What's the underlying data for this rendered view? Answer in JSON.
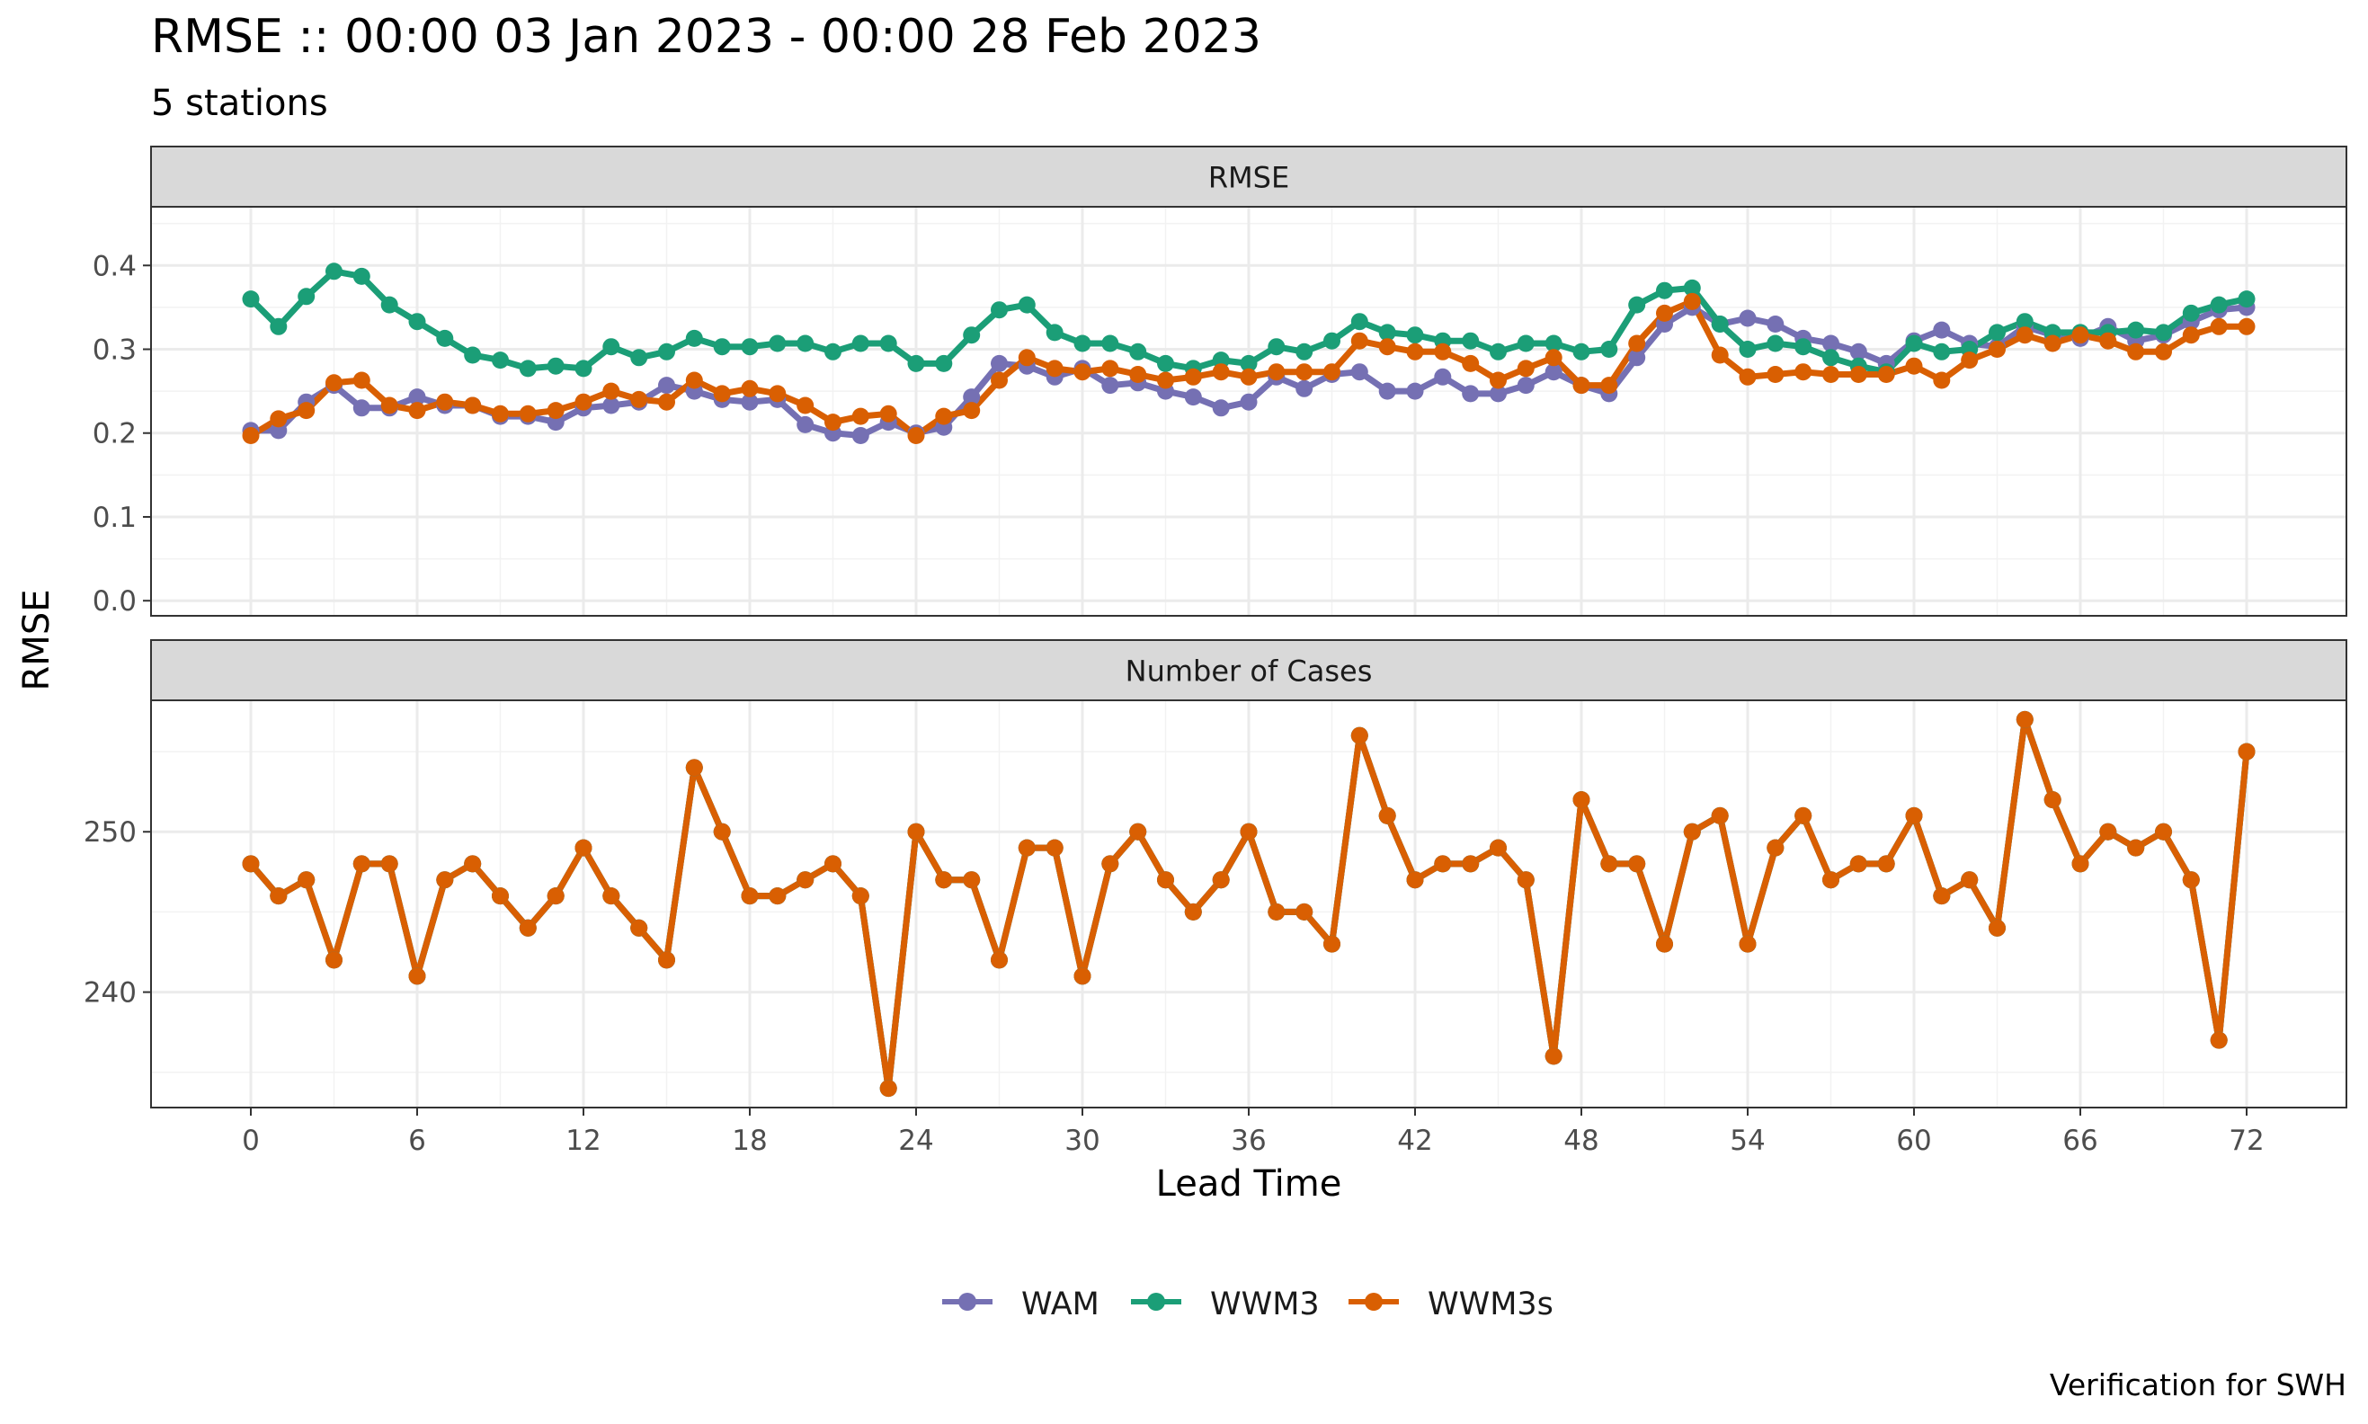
{
  "title": "RMSE :: 00:00 03 Jan 2023 - 00:00 28 Feb 2023",
  "subtitle": "5 stations",
  "caption": "Verification for SWH",
  "ylabel": "RMSE",
  "xlabel": "Lead Time",
  "legend_position": "bottom",
  "colors": {
    "WAM": "#7570b3",
    "WWM3": "#1b9e77",
    "WWM3s": "#d95f02"
  },
  "chart_data": [
    {
      "type": "line",
      "panel_title": "RMSE",
      "x": [
        0,
        1,
        2,
        3,
        4,
        5,
        6,
        7,
        8,
        9,
        10,
        11,
        12,
        13,
        14,
        15,
        16,
        17,
        18,
        19,
        20,
        21,
        22,
        23,
        24,
        25,
        26,
        27,
        28,
        29,
        30,
        31,
        32,
        33,
        34,
        35,
        36,
        37,
        38,
        39,
        40,
        41,
        42,
        43,
        44,
        45,
        46,
        47,
        48,
        49,
        50,
        51,
        52,
        53,
        54,
        55,
        56,
        57,
        58,
        59,
        60,
        61,
        62,
        63,
        64,
        65,
        66,
        67,
        68,
        69,
        70,
        71,
        72
      ],
      "xlim": [
        -3.6,
        75.6
      ],
      "xticks": [
        0,
        6,
        12,
        18,
        24,
        30,
        36,
        42,
        48,
        54,
        60,
        66,
        72
      ],
      "ylim": [
        -0.018,
        0.47
      ],
      "yticks": [
        0.0,
        0.1,
        0.2,
        0.3,
        0.4
      ],
      "ytick_labels": [
        "0.0",
        "0.1",
        "0.2",
        "0.3",
        "0.4"
      ],
      "grid": true,
      "series": [
        {
          "name": "WAM",
          "values": [
            0.203,
            0.203,
            0.237,
            0.257,
            0.23,
            0.23,
            0.243,
            0.233,
            0.233,
            0.22,
            0.22,
            0.213,
            0.23,
            0.233,
            0.237,
            0.257,
            0.25,
            0.24,
            0.237,
            0.24,
            0.21,
            0.2,
            0.197,
            0.213,
            0.2,
            0.207,
            0.243,
            0.283,
            0.28,
            0.267,
            0.277,
            0.257,
            0.26,
            0.25,
            0.243,
            0.23,
            0.237,
            0.267,
            0.253,
            0.27,
            0.273,
            0.25,
            0.25,
            0.267,
            0.247,
            0.247,
            0.257,
            0.273,
            0.257,
            0.247,
            0.29,
            0.33,
            0.35,
            0.33,
            0.337,
            0.33,
            0.313,
            0.307,
            0.297,
            0.283,
            0.31,
            0.323,
            0.307,
            0.303,
            0.327,
            0.317,
            0.313,
            0.327,
            0.31,
            0.317,
            0.333,
            0.347,
            0.35
          ]
        },
        {
          "name": "WWM3",
          "values": [
            0.36,
            0.327,
            0.363,
            0.393,
            0.387,
            0.353,
            0.333,
            0.313,
            0.293,
            0.287,
            0.277,
            0.28,
            0.277,
            0.303,
            0.29,
            0.297,
            0.313,
            0.303,
            0.303,
            0.307,
            0.307,
            0.297,
            0.307,
            0.307,
            0.283,
            0.283,
            0.317,
            0.347,
            0.353,
            0.32,
            0.307,
            0.307,
            0.297,
            0.283,
            0.277,
            0.287,
            0.283,
            0.303,
            0.297,
            0.31,
            0.333,
            0.32,
            0.317,
            0.31,
            0.31,
            0.297,
            0.307,
            0.307,
            0.297,
            0.3,
            0.353,
            0.37,
            0.373,
            0.33,
            0.3,
            0.307,
            0.303,
            0.29,
            0.28,
            0.273,
            0.307,
            0.297,
            0.3,
            0.32,
            0.333,
            0.32,
            0.32,
            0.32,
            0.323,
            0.32,
            0.343,
            0.353,
            0.36
          ]
        },
        {
          "name": "WWM3s",
          "values": [
            0.197,
            0.217,
            0.227,
            0.26,
            0.263,
            0.233,
            0.227,
            0.237,
            0.233,
            0.223,
            0.223,
            0.227,
            0.237,
            0.25,
            0.24,
            0.237,
            0.263,
            0.247,
            0.253,
            0.247,
            0.233,
            0.213,
            0.22,
            0.223,
            0.197,
            0.22,
            0.227,
            0.263,
            0.29,
            0.277,
            0.273,
            0.277,
            0.27,
            0.263,
            0.267,
            0.273,
            0.267,
            0.273,
            0.273,
            0.273,
            0.31,
            0.303,
            0.297,
            0.297,
            0.283,
            0.263,
            0.277,
            0.29,
            0.257,
            0.257,
            0.307,
            0.343,
            0.357,
            0.293,
            0.267,
            0.27,
            0.273,
            0.27,
            0.27,
            0.27,
            0.28,
            0.263,
            0.287,
            0.3,
            0.317,
            0.307,
            0.317,
            0.31,
            0.297,
            0.297,
            0.317,
            0.327,
            0.327
          ]
        }
      ]
    },
    {
      "type": "line",
      "panel_title": "Number of Cases",
      "x": [
        0,
        1,
        2,
        3,
        4,
        5,
        6,
        7,
        8,
        9,
        10,
        11,
        12,
        13,
        14,
        15,
        16,
        17,
        18,
        19,
        20,
        21,
        22,
        23,
        24,
        25,
        26,
        27,
        28,
        29,
        30,
        31,
        32,
        33,
        34,
        35,
        36,
        37,
        38,
        39,
        40,
        41,
        42,
        43,
        44,
        45,
        46,
        47,
        48,
        49,
        50,
        51,
        52,
        53,
        54,
        55,
        56,
        57,
        58,
        59,
        60,
        61,
        62,
        63,
        64,
        65,
        66,
        67,
        68,
        69,
        70,
        71,
        72
      ],
      "xlim": [
        -3.6,
        75.6
      ],
      "xticks": [
        0,
        6,
        12,
        18,
        24,
        30,
        36,
        42,
        48,
        54,
        60,
        66,
        72
      ],
      "ylim": [
        232.8,
        258.2
      ],
      "yticks": [
        240,
        250
      ],
      "ytick_labels": [
        "240",
        "250"
      ],
      "grid": true,
      "series": [
        {
          "name": "WAM",
          "values": [
            248,
            246,
            247,
            242,
            248,
            248,
            241,
            247,
            248,
            246,
            244,
            246,
            249,
            246,
            244,
            242,
            254,
            250,
            246,
            246,
            247,
            248,
            246,
            234,
            250,
            247,
            247,
            242,
            249,
            249,
            241,
            248,
            250,
            247,
            245,
            247,
            250,
            245,
            245,
            243,
            256,
            251,
            247,
            248,
            248,
            249,
            247,
            236,
            252,
            248,
            248,
            243,
            250,
            251,
            243,
            249,
            251,
            247,
            248,
            248,
            251,
            246,
            247,
            244,
            257,
            252,
            248,
            250,
            249,
            250,
            247,
            237,
            255
          ]
        },
        {
          "name": "WWM3",
          "values": [
            248,
            246,
            247,
            242,
            248,
            248,
            241,
            247,
            248,
            246,
            244,
            246,
            249,
            246,
            244,
            242,
            254,
            250,
            246,
            246,
            247,
            248,
            246,
            234,
            250,
            247,
            247,
            242,
            249,
            249,
            241,
            248,
            250,
            247,
            245,
            247,
            250,
            245,
            245,
            243,
            256,
            251,
            247,
            248,
            248,
            249,
            247,
            236,
            252,
            248,
            248,
            243,
            250,
            251,
            243,
            249,
            251,
            247,
            248,
            248,
            251,
            246,
            247,
            244,
            257,
            252,
            248,
            250,
            249,
            250,
            247,
            237,
            255
          ]
        },
        {
          "name": "WWM3s",
          "values": [
            248,
            246,
            247,
            242,
            248,
            248,
            241,
            247,
            248,
            246,
            244,
            246,
            249,
            246,
            244,
            242,
            254,
            250,
            246,
            246,
            247,
            248,
            246,
            234,
            250,
            247,
            247,
            242,
            249,
            249,
            241,
            248,
            250,
            247,
            245,
            247,
            250,
            245,
            245,
            243,
            256,
            251,
            247,
            248,
            248,
            249,
            247,
            236,
            252,
            248,
            248,
            243,
            250,
            251,
            243,
            249,
            251,
            247,
            248,
            248,
            251,
            246,
            247,
            244,
            257,
            252,
            248,
            250,
            249,
            250,
            247,
            237,
            255
          ]
        }
      ]
    }
  ]
}
